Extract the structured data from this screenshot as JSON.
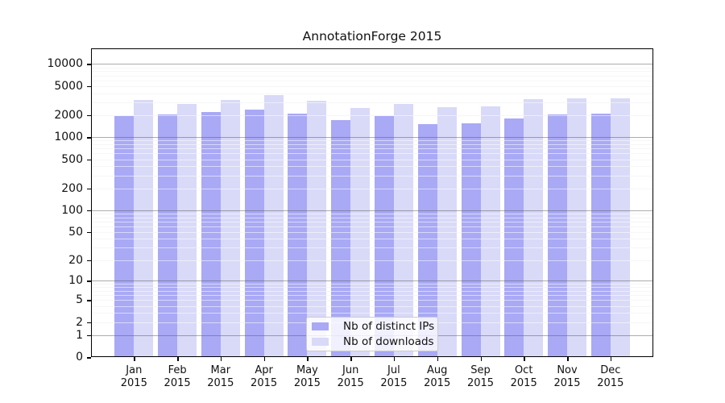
{
  "title": "AnnotationForge 2015",
  "chart_data": {
    "type": "bar",
    "title": "AnnotationForge 2015",
    "scale": "log10(1+y)",
    "grid": true,
    "legend_position": "bottom-center",
    "categories": [
      "Jan",
      "Feb",
      "Mar",
      "Apr",
      "May",
      "Jun",
      "Jul",
      "Aug",
      "Sep",
      "Oct",
      "Nov",
      "Dec"
    ],
    "year": "2015",
    "series": [
      {
        "name": "Nb of distinct IPs",
        "color": "#a9a9f6",
        "values": [
          1950,
          2030,
          2190,
          2380,
          2120,
          1700,
          1930,
          1500,
          1560,
          1820,
          2030,
          2120
        ]
      },
      {
        "name": "Nb of downloads",
        "color": "#d9d9f8",
        "values": [
          3200,
          2820,
          3230,
          3730,
          3150,
          2490,
          2850,
          2550,
          2650,
          3280,
          3400,
          3370
        ]
      }
    ],
    "y_ticks": [
      0,
      1,
      2,
      5,
      10,
      20,
      50,
      100,
      200,
      500,
      1000,
      2000,
      5000,
      10000
    ],
    "y_tick_labels": [
      "0",
      "1",
      "2",
      "5",
      "10",
      "20",
      "50",
      "100",
      "200",
      "500",
      "1000",
      "2000",
      "5000",
      "10000"
    ],
    "ylim": [
      0,
      15000
    ]
  },
  "colors": {
    "bar_dark": "#a9a9f6",
    "bar_light": "#d9d9f8",
    "major_grid": "#acacac",
    "minor_grid": "#ececec",
    "spine": "#000000"
  }
}
